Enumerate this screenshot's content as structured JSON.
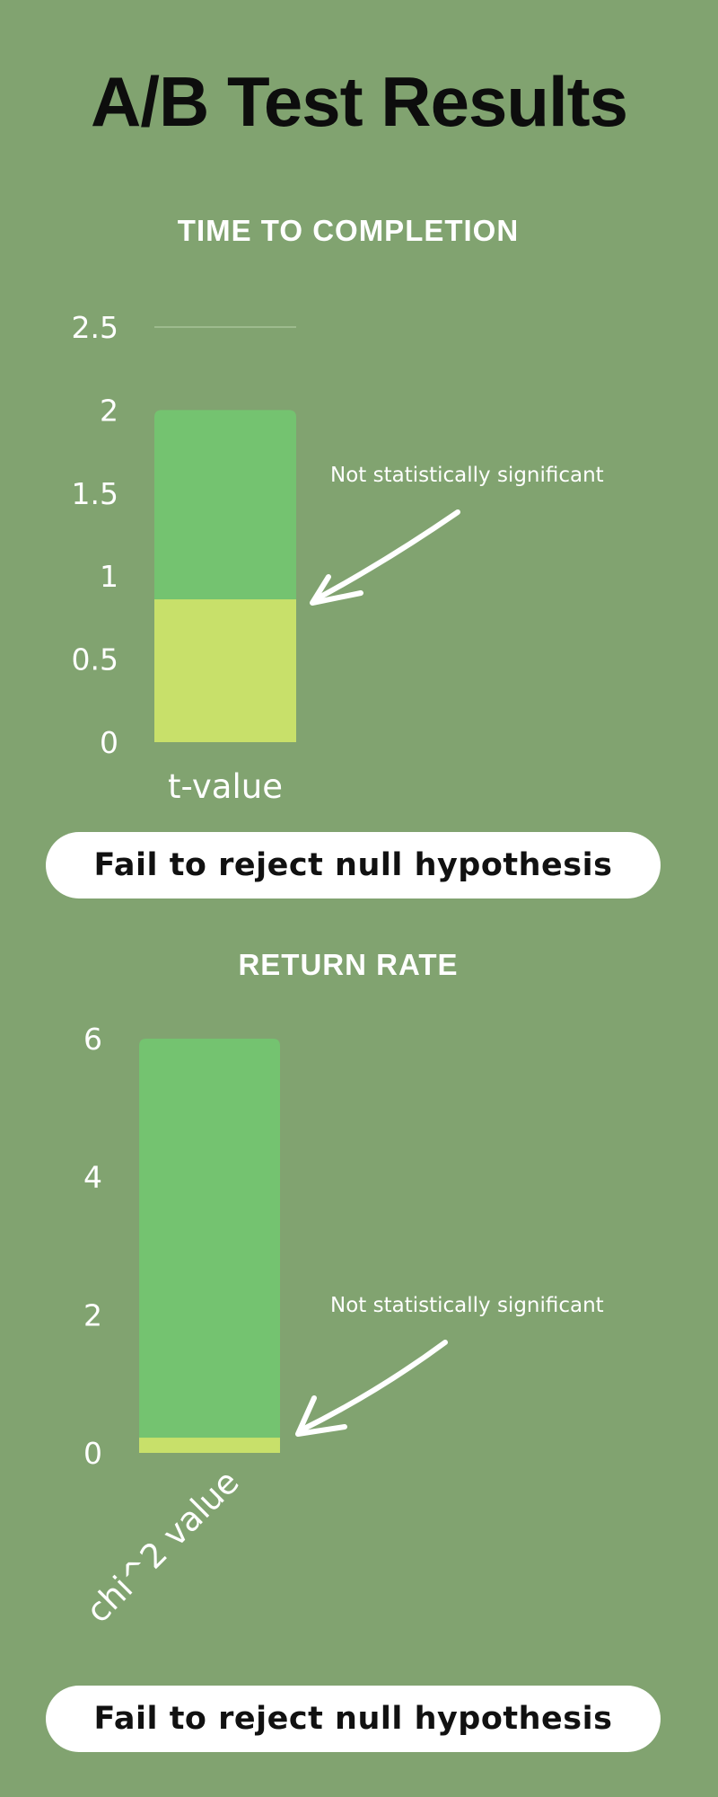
{
  "title": "A/B Test Results",
  "colors": {
    "background": "#81a370",
    "bar_total": "#74c370",
    "bar_value": "#c8e06a",
    "text": "#ffffff"
  },
  "sections": [
    {
      "title": "TIME TO COMPLETION",
      "conclusion": "Fail to reject null hypothesis"
    },
    {
      "title": "RETURN RATE",
      "conclusion": "Fail to reject null hypothesis"
    }
  ],
  "chart_data": [
    {
      "type": "bar",
      "title": "TIME TO COMPLETION",
      "categories": [
        "t-value"
      ],
      "series": [
        {
          "values": [
            0.86
          ]
        },
        {
          "values": [
            2.0
          ]
        }
      ],
      "ylim": [
        0,
        2.5
      ],
      "yticks": [
        "0",
        "0.5",
        "1",
        "1.5",
        "2",
        "2.5"
      ],
      "annotation": "Not statistically significant",
      "grid": false,
      "legend": "none"
    },
    {
      "type": "bar",
      "title": "RETURN RATE",
      "categories": [
        "chi^2 value"
      ],
      "series": [
        {
          "values": [
            0.22
          ]
        },
        {
          "values": [
            6.0
          ]
        }
      ],
      "ylim": [
        0,
        6
      ],
      "yticks": [
        "0",
        "2",
        "4",
        "6"
      ],
      "annotation": "Not statistically significant",
      "grid": false,
      "legend": "none"
    }
  ]
}
